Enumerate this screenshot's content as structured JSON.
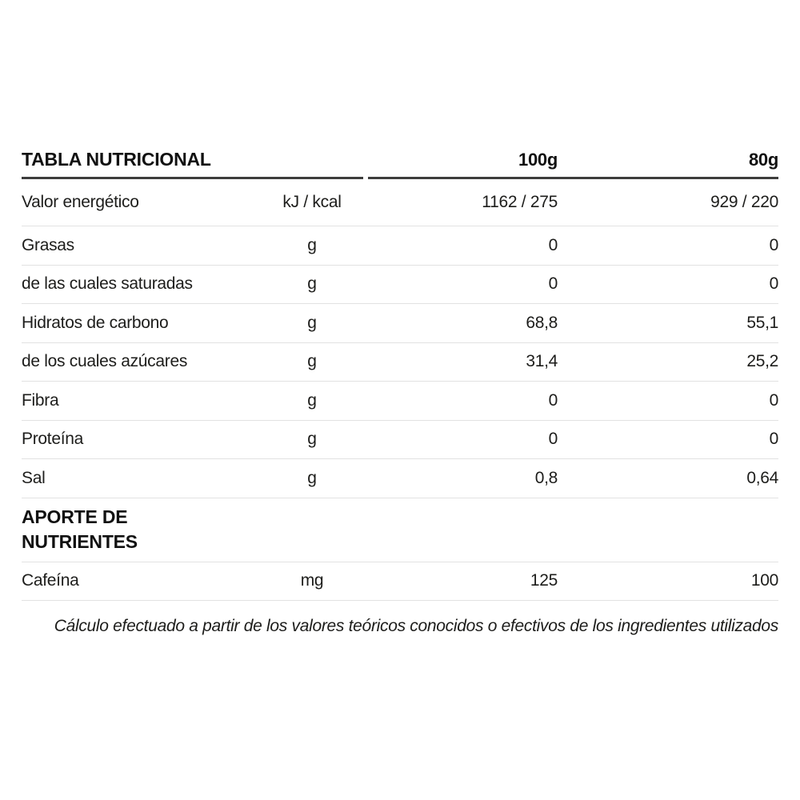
{
  "table": {
    "title": "TABLA NUTRICIONAL",
    "columns": [
      "100g",
      "80g"
    ],
    "rows": [
      {
        "label": "Valor energético",
        "unit": "kJ / kcal",
        "v100": "1162 / 275",
        "v80": "929 / 220"
      },
      {
        "label": "Grasas",
        "unit": "g",
        "v100": "0",
        "v80": "0"
      },
      {
        "label": "de las cuales saturadas",
        "unit": "g",
        "v100": "0",
        "v80": "0"
      },
      {
        "label": "Hidratos de carbono",
        "unit": "g",
        "v100": "68,8",
        "v80": "55,1"
      },
      {
        "label": "de los cuales azúcares",
        "unit": "g",
        "v100": "31,4",
        "v80": "25,2"
      },
      {
        "label": "Fibra",
        "unit": "g",
        "v100": "0",
        "v80": "0"
      },
      {
        "label": "Proteína",
        "unit": "g",
        "v100": "0",
        "v80": "0"
      },
      {
        "label": "Sal",
        "unit": "g",
        "v100": "0,8",
        "v80": "0,64"
      }
    ],
    "section_header": "APORTE DE NUTRIENTES",
    "section_rows": [
      {
        "label": "Cafeína",
        "unit": "mg",
        "v100": "125",
        "v80": "100"
      }
    ],
    "footnote": "Cálculo efectuado a partir de los valores teóricos conocidos o efectivos de los ingredientes utilizados"
  },
  "colors": {
    "text": "#1d1d1b",
    "rule_dark": "#3d3d3c",
    "rule_light": "#e2e2e2",
    "bg": "#ffffff"
  }
}
